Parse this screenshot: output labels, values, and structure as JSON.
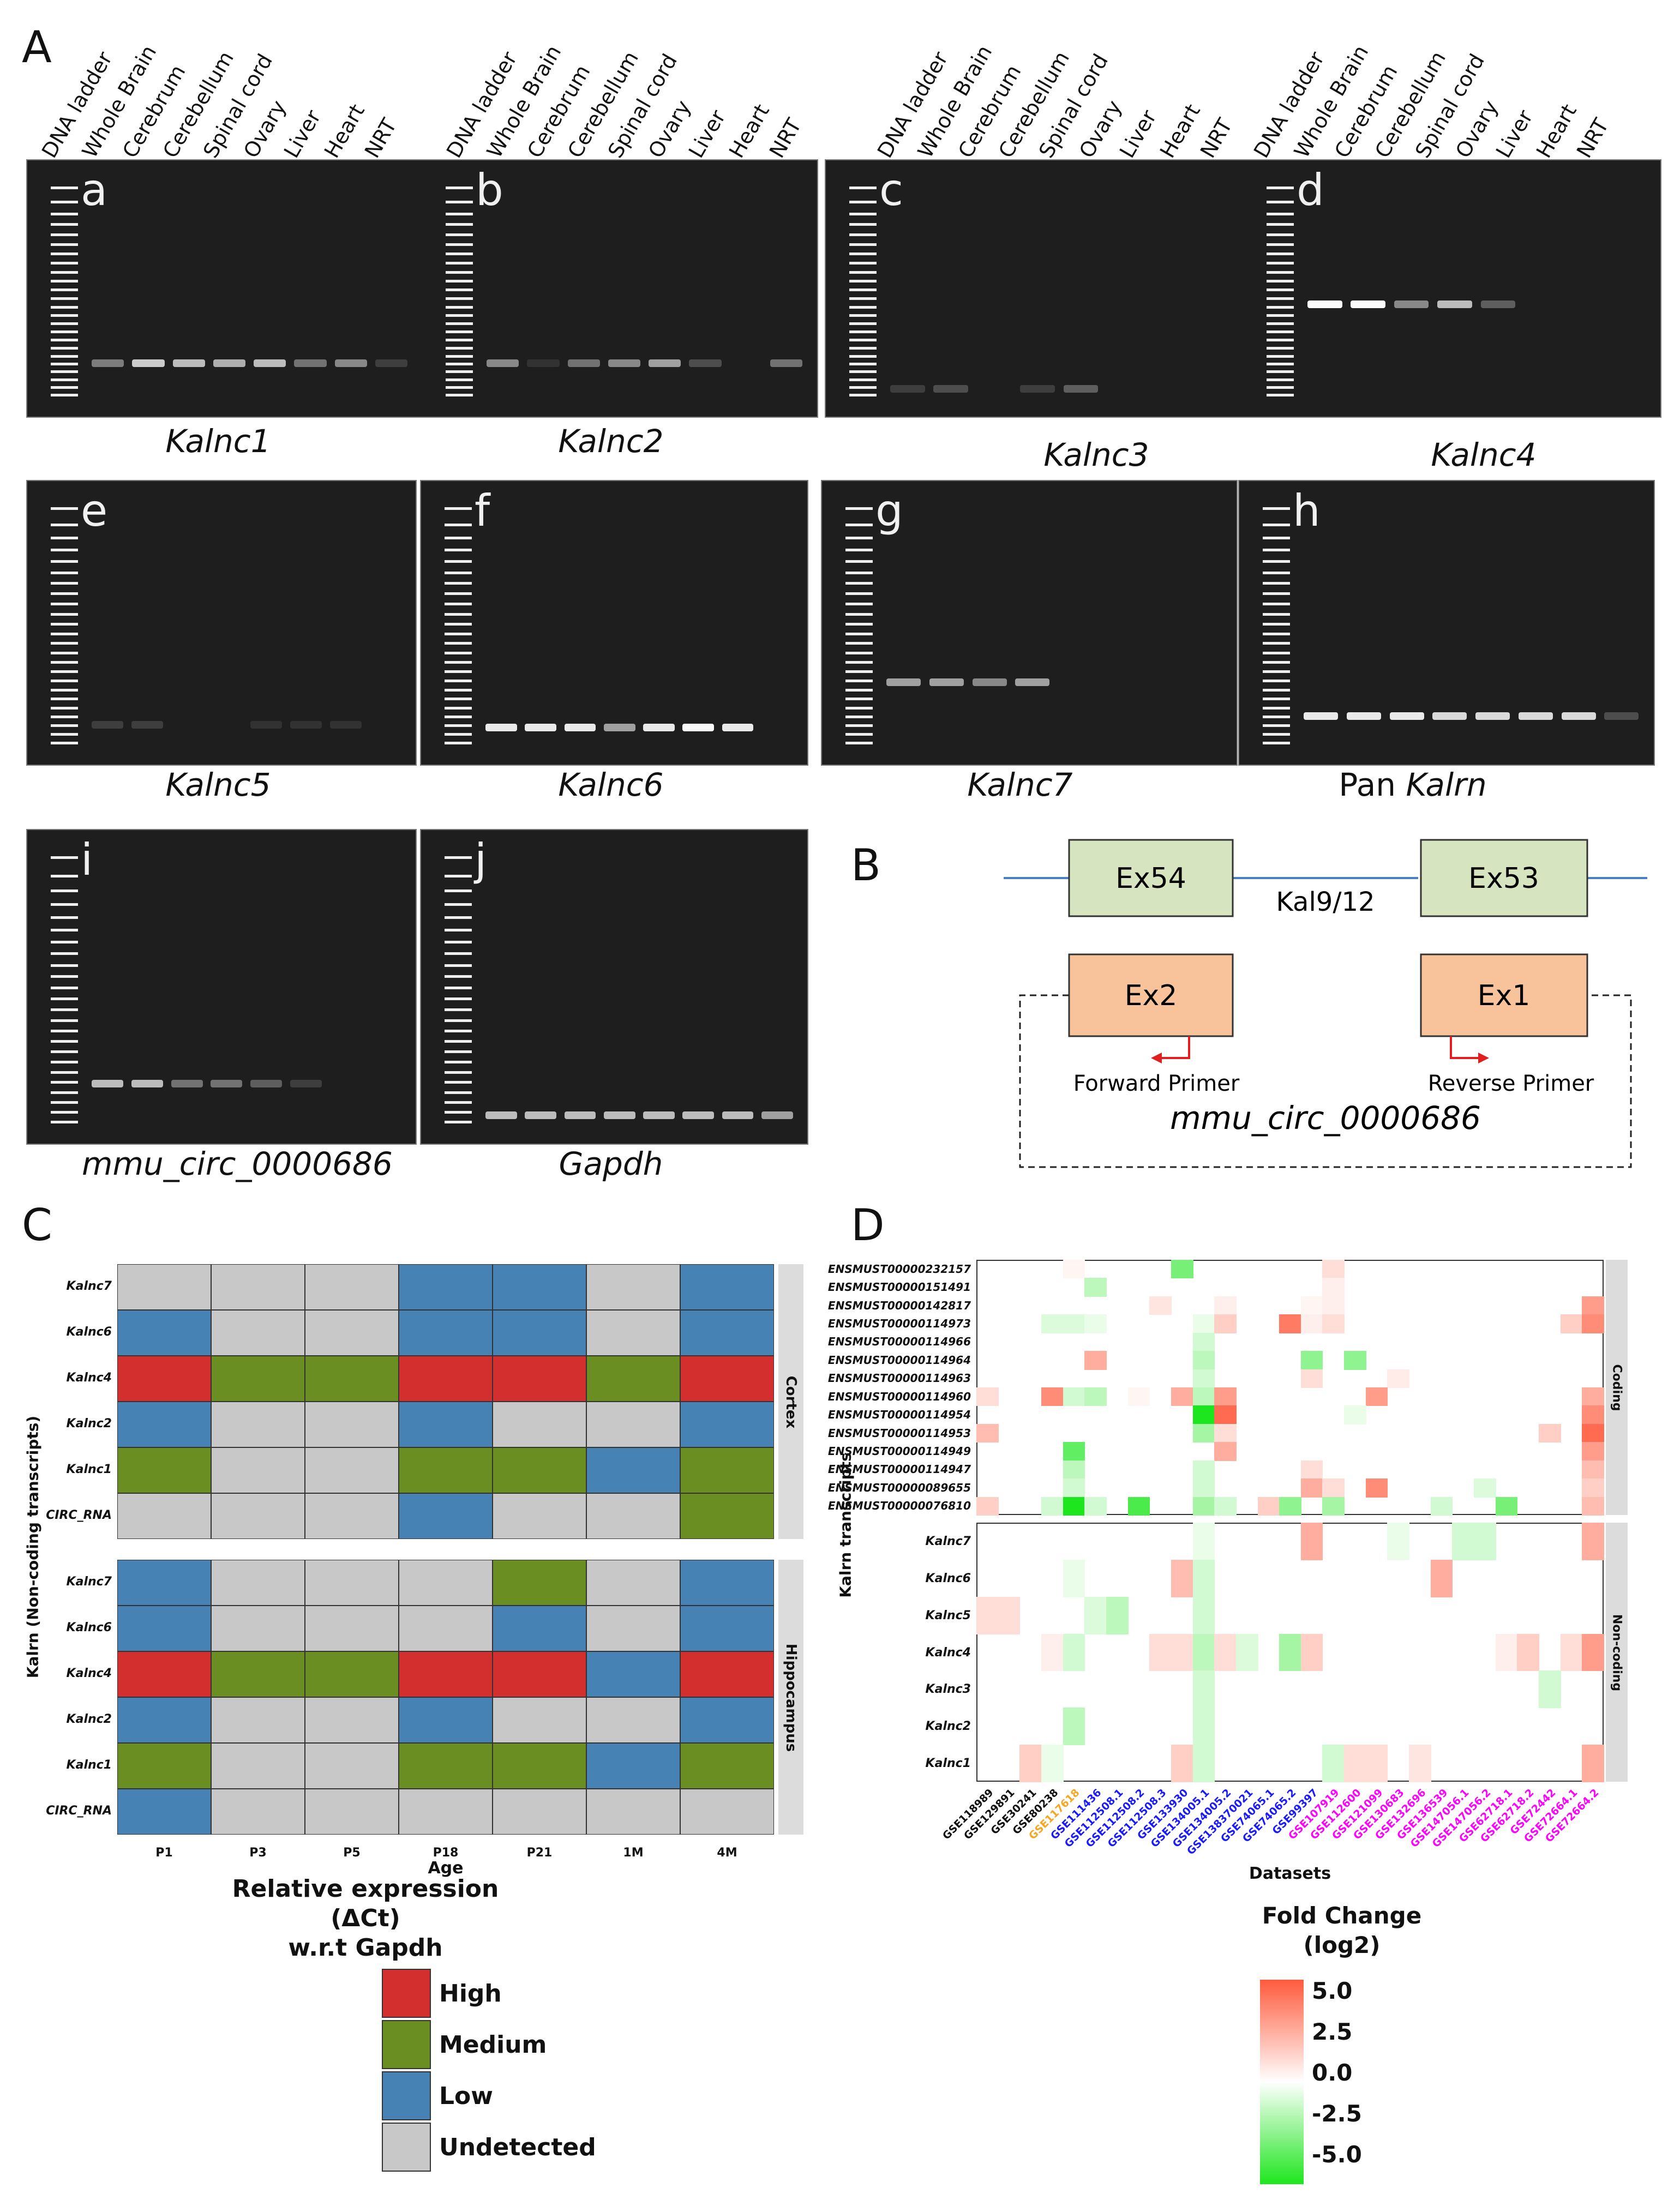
{
  "panels": {
    "A": "A",
    "B": "B",
    "C": "C",
    "D": "D"
  },
  "gel_lane_labels": [
    "DNA ladder",
    "Whole Brain",
    "Cerebrum",
    "Cerebellum",
    "Spinal  cord",
    "Ovary",
    "Liver",
    "Heart",
    "NRT"
  ],
  "gels": [
    {
      "letter": "a",
      "caption": "Kalnc1",
      "bands": [
        0.55,
        0.85,
        0.8,
        0.75,
        0.8,
        0.5,
        0.6,
        0.2
      ],
      "band_pos": 0.78
    },
    {
      "letter": "b",
      "caption": "Kalnc2",
      "bands": [
        0.6,
        0.1,
        0.5,
        0.6,
        0.7,
        0.3,
        0.0,
        0.5
      ],
      "band_pos": 0.78
    },
    {
      "letter": "c",
      "caption": "Kalnc3",
      "bands": [
        0.2,
        0.3,
        0.0,
        0.2,
        0.4,
        0.0,
        0.0,
        0.0
      ],
      "band_pos": 0.88
    },
    {
      "letter": "d",
      "caption": "Kalnc4",
      "bands": [
        1.0,
        1.0,
        0.6,
        0.8,
        0.4,
        0.0,
        0.0,
        0.0
      ],
      "band_pos": 0.55
    },
    {
      "letter": "e",
      "caption": "Kalnc5",
      "bands": [
        0.2,
        0.2,
        0.0,
        0.0,
        0.1,
        0.1,
        0.1,
        0.0
      ],
      "band_pos": 0.85
    },
    {
      "letter": "f",
      "caption": "Kalnc6",
      "bands": [
        0.95,
        0.95,
        0.95,
        0.7,
        0.95,
        1.0,
        0.95,
        0.0
      ],
      "band_pos": 0.86
    },
    {
      "letter": "g",
      "caption": "Kalnc7",
      "bands": [
        0.7,
        0.7,
        0.6,
        0.7,
        0.0,
        0.0,
        0.0,
        0.0
      ],
      "band_pos": 0.7
    },
    {
      "letter": "h",
      "caption_plain": "Pan ",
      "caption": "Kalrn",
      "bands": [
        0.95,
        0.95,
        0.95,
        0.9,
        0.9,
        0.9,
        0.9,
        0.3
      ],
      "band_pos": 0.82
    },
    {
      "letter": "i",
      "caption": "mmu_circ_0000686",
      "bands": [
        0.8,
        0.8,
        0.5,
        0.5,
        0.4,
        0.2,
        0.0,
        0.0
      ],
      "band_pos": 0.8
    },
    {
      "letter": "j",
      "caption": "Gapdh",
      "bands": [
        0.8,
        0.8,
        0.8,
        0.8,
        0.8,
        0.8,
        0.8,
        0.7
      ],
      "band_pos": 0.9
    }
  ],
  "diagram": {
    "exon_top_left": "Ex54",
    "exon_top_right": "Ex53",
    "isoform": "Kal9/12",
    "exon_bottom_left": "Ex2",
    "exon_bottom_right": "Ex1",
    "forward_primer": "Forward Primer",
    "reverse_primer": "Reverse Primer",
    "circ_name": "mmu_circ_0000686",
    "colors": {
      "exon_green": "#d6e4c0",
      "exon_orange": "#f8c39a",
      "line_blue": "#4a7fc1",
      "primer_red": "#e02020"
    }
  },
  "panel_C": {
    "ylabel": "Kalrn (Non-coding transcripts)",
    "xlabel": "Age",
    "ages": [
      "P1",
      "P3",
      "P5",
      "P18",
      "P21",
      "1M",
      "4M"
    ],
    "rows": [
      "Kalnc7",
      "Kalnc6",
      "Kalnc4",
      "Kalnc2",
      "Kalnc1",
      "CIRC_RNA"
    ],
    "cortex_label": "Cortex",
    "hippocampus_label": "Hippocampus",
    "cortex": [
      [
        "U",
        "U",
        "U",
        "L",
        "L",
        "U",
        "L"
      ],
      [
        "L",
        "U",
        "U",
        "L",
        "L",
        "U",
        "L"
      ],
      [
        "H",
        "M",
        "M",
        "H",
        "H",
        "M",
        "H"
      ],
      [
        "L",
        "U",
        "U",
        "L",
        "U",
        "U",
        "L"
      ],
      [
        "M",
        "U",
        "U",
        "M",
        "M",
        "L",
        "M"
      ],
      [
        "U",
        "U",
        "U",
        "L",
        "U",
        "U",
        "M"
      ]
    ],
    "hippocampus": [
      [
        "L",
        "U",
        "U",
        "U",
        "M",
        "U",
        "L"
      ],
      [
        "L",
        "U",
        "U",
        "U",
        "L",
        "U",
        "L"
      ],
      [
        "H",
        "M",
        "M",
        "H",
        "H",
        "L",
        "H"
      ],
      [
        "L",
        "U",
        "U",
        "L",
        "U",
        "U",
        "L"
      ],
      [
        "M",
        "U",
        "U",
        "M",
        "M",
        "L",
        "M"
      ],
      [
        "L",
        "U",
        "U",
        "U",
        "U",
        "U",
        "U"
      ]
    ],
    "legend_title_1": "Relative expression",
    "legend_title_2": "(ΔCt)",
    "legend_title_3": "w.r.t Gapdh",
    "legend": [
      {
        "key": "H",
        "label": "High",
        "color": "#d32f2f"
      },
      {
        "key": "M",
        "label": "Medium",
        "color": "#6b8e23"
      },
      {
        "key": "L",
        "label": "Low",
        "color": "#4682b4"
      },
      {
        "key": "U",
        "label": "Undetected",
        "color": "#c8c8c8"
      }
    ]
  },
  "chart_data": {
    "type": "heatmap",
    "title": "",
    "ylabel": "Kalrn transcripts",
    "xlabel": "Datasets",
    "legend_title_1": "Fold Change",
    "legend_title_2": "(log2)",
    "legend_ticks": [
      "5.0",
      "2.5",
      "0.0",
      "-2.5",
      "-5.0"
    ],
    "coding_label": "Coding",
    "noncoding_label": "Non-coding",
    "datasets": [
      "GSE118989",
      "GSE129891",
      "GSE30241",
      "GSE80238",
      "GSE117618",
      "GSE111436",
      "GSE112508.1",
      "GSE112508.2",
      "GSE112508.3",
      "GSE133930",
      "GSE134005.1",
      "GSE134005.2",
      "GSE138370021",
      "GSE74065.1",
      "GSE74065.2",
      "GSE99397",
      "GSE107919",
      "GSE112600",
      "GSE121099",
      "GSE130683",
      "GSE132696",
      "GSE136539",
      "GSE147056.1",
      "GSE147056.2",
      "GSE62718.1",
      "GSE62718.2",
      "GSE72442",
      "GSE72664.1",
      "GSE72664.2"
    ],
    "dataset_colors": [
      "#111111",
      "#111111",
      "#111111",
      "#111111",
      "#f5a623",
      "#1a1aff",
      "#1a1aff",
      "#1a1aff",
      "#1a1aff",
      "#1a1aff",
      "#1a1aff",
      "#1a1aff",
      "#1a1aff",
      "#1a1aff",
      "#1a1aff",
      "#1a1aff",
      "#ff00ff",
      "#ff00ff",
      "#ff00ff",
      "#ff00ff",
      "#ff00ff",
      "#ff00ff",
      "#ff00ff",
      "#ff00ff",
      "#ff00ff",
      "#ff00ff",
      "#ff00ff",
      "#ff00ff",
      "#ff00ff"
    ],
    "coding_rows": [
      "ENSMUST00000232157",
      "ENSMUST00000151491",
      "ENSMUST00000142817",
      "ENSMUST00000114973",
      "ENSMUST00000114966",
      "ENSMUST00000114964",
      "ENSMUST00000114963",
      "ENSMUST00000114960",
      "ENSMUST00000114954",
      "ENSMUST00000114953",
      "ENSMUST00000114949",
      "ENSMUST00000114947",
      "ENSMUST00000089655",
      "ENSMUST00000076810"
    ],
    "noncoding_rows": [
      "Kalnc7",
      "Kalnc6",
      "Kalnc5",
      "Kalnc4",
      "Kalnc3",
      "Kalnc2",
      "Kalnc1"
    ],
    "coding_values": [
      [
        0,
        0,
        0,
        0,
        0.3,
        0,
        0,
        0,
        0,
        -3,
        0,
        0,
        0,
        0,
        0,
        0,
        1,
        0,
        0,
        0,
        0,
        0,
        0,
        0,
        0,
        0,
        0,
        0,
        0
      ],
      [
        0,
        0,
        0,
        0,
        0,
        -1.5,
        0,
        0,
        0,
        0,
        0,
        0,
        0,
        0,
        0,
        0,
        0.5,
        0,
        0,
        0,
        0,
        0,
        0,
        0,
        0,
        0,
        0,
        0,
        0
      ],
      [
        0,
        0,
        0,
        0,
        0,
        0,
        0,
        0,
        0.8,
        0,
        0,
        0.5,
        0,
        0,
        0,
        0.3,
        0.5,
        0,
        0,
        0,
        0,
        0,
        0,
        0,
        0,
        0,
        0,
        0,
        3
      ],
      [
        0,
        0,
        0,
        -0.8,
        -0.8,
        -0.5,
        0,
        0,
        0,
        0,
        -0.5,
        1.5,
        0,
        0,
        4,
        0.5,
        1,
        0,
        0,
        0,
        0,
        0,
        0,
        0,
        0,
        0,
        0,
        1.5,
        3.5
      ],
      [
        0,
        0,
        0,
        0,
        0,
        0,
        0,
        0,
        0,
        0,
        -1,
        0,
        0,
        0,
        0,
        0,
        0,
        0,
        0,
        0,
        0,
        0,
        0,
        0,
        0,
        0,
        0,
        0,
        0
      ],
      [
        0,
        0,
        0,
        0,
        0,
        2.5,
        0,
        0,
        0,
        0,
        -1.5,
        0,
        0,
        0,
        0,
        -2.5,
        0,
        -2.5,
        0,
        0,
        0,
        0,
        0,
        0,
        0,
        0,
        0,
        0,
        0
      ],
      [
        0,
        0,
        0,
        0,
        0,
        0,
        0,
        0,
        0,
        0,
        -1,
        0,
        0,
        0,
        0,
        1,
        0,
        0,
        0,
        0.6,
        0,
        0,
        0,
        0,
        0,
        0,
        0,
        0,
        0
      ],
      [
        1,
        0,
        0,
        3.5,
        -1,
        -1.5,
        0,
        0.3,
        0,
        2.5,
        -1.5,
        3,
        0,
        0,
        0,
        0,
        0,
        0,
        3,
        0,
        0,
        0,
        0,
        0,
        0,
        0,
        0,
        0,
        2.5
      ],
      [
        0,
        0,
        0,
        0,
        0,
        0,
        0,
        0,
        0,
        0,
        -5,
        4.5,
        0,
        0,
        0,
        0,
        0,
        -0.5,
        0,
        0,
        0,
        0,
        0,
        0,
        0,
        0,
        0,
        0,
        3.5
      ],
      [
        2,
        0,
        0,
        0,
        0,
        0,
        0,
        0,
        0,
        0,
        -2,
        1,
        0,
        0,
        0,
        0,
        0,
        0,
        0,
        0,
        0,
        0,
        0,
        0,
        0,
        0,
        1.5,
        0,
        4.5
      ],
      [
        0,
        0,
        0,
        0,
        -3.5,
        0,
        0,
        0,
        0,
        0,
        0,
        2.5,
        0,
        0,
        0,
        0,
        0,
        0,
        0,
        0,
        0,
        0,
        0,
        0,
        0,
        0,
        0,
        0,
        3
      ],
      [
        0,
        0,
        0,
        0,
        -1.5,
        0,
        0,
        0,
        0,
        0,
        -1,
        0,
        0,
        0,
        0,
        1,
        0,
        0,
        0,
        0,
        0,
        0,
        0,
        0,
        0,
        0,
        0,
        0,
        2
      ],
      [
        0,
        0,
        0,
        0,
        -1,
        0,
        0,
        0,
        0,
        0,
        -1,
        0,
        0,
        0,
        0,
        2.5,
        1,
        0,
        3.5,
        0,
        0,
        0,
        0,
        -0.8,
        0,
        0,
        0,
        0,
        1.5
      ],
      [
        1.5,
        0,
        0,
        -1,
        -5,
        -1,
        0,
        -4,
        0,
        0,
        -2,
        -1,
        0,
        1.5,
        -2.5,
        0,
        -2,
        0,
        0,
        0,
        0,
        -1,
        0,
        0,
        -3,
        0,
        0,
        0,
        2
      ]
    ],
    "noncoding_values": [
      [
        0,
        0,
        0,
        0,
        0,
        0,
        0,
        0,
        0,
        0,
        -0.5,
        0,
        0,
        0,
        0,
        2.5,
        0,
        0,
        0,
        -0.5,
        0,
        0,
        -1,
        -1,
        0,
        0,
        0,
        0,
        2.5
      ],
      [
        0,
        0,
        0,
        0,
        -0.5,
        0,
        0,
        0,
        0,
        2,
        -1,
        0,
        0,
        0,
        0,
        0,
        0,
        0,
        0,
        0,
        0,
        2.5,
        0,
        0,
        0,
        0,
        0,
        0,
        0
      ],
      [
        1,
        1,
        0,
        0,
        0,
        -0.8,
        -1.5,
        0,
        0,
        0,
        -1,
        0,
        0,
        0,
        0,
        0,
        0,
        0,
        0,
        0,
        0,
        0,
        0,
        0,
        0,
        0,
        0,
        0,
        0
      ],
      [
        0,
        0,
        0,
        0.5,
        -1,
        0,
        0,
        0,
        1,
        1,
        -1.5,
        1,
        -0.8,
        0,
        -2,
        1.5,
        0,
        0,
        0,
        0,
        0,
        0,
        0,
        0,
        0.5,
        1.5,
        0,
        1,
        3
      ],
      [
        0,
        0,
        0,
        0,
        0,
        0,
        0,
        0,
        0,
        0,
        -1,
        0,
        0,
        0,
        0,
        0,
        0,
        0,
        0,
        0,
        0,
        0,
        0,
        0,
        0,
        0,
        -1,
        0,
        0
      ],
      [
        0,
        0,
        0,
        0,
        -1.5,
        0,
        0,
        0,
        0,
        0,
        -1,
        0,
        0,
        0,
        0,
        0,
        0,
        0,
        0,
        0,
        0,
        0,
        0,
        0,
        0,
        0,
        0,
        0,
        0
      ],
      [
        0,
        0,
        1.5,
        -0.5,
        0,
        0,
        0,
        0,
        0,
        1.5,
        -1,
        0,
        0,
        0,
        0,
        0,
        -1,
        1,
        1,
        0,
        0.8,
        0,
        0,
        0,
        0,
        0,
        0,
        0,
        2.5
      ]
    ],
    "color_range": [
      -5,
      5
    ]
  }
}
